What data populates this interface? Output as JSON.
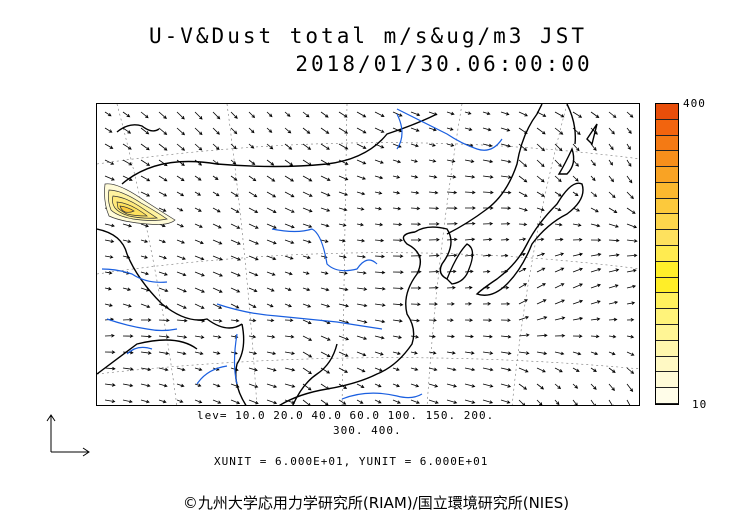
{
  "title_line1": "U-V&Dust total m/s&ug/m3 JST",
  "title_line2": "2018/01/30.06:00:00",
  "lev_line1": "lev= 10.0 20.0 40.0 60.0 100. 150. 200.",
  "lev_line2": "300. 400.",
  "unit_line": "XUNIT = 6.000E+01, YUNIT = 6.000E+01",
  "legend": {
    "max_label": "400",
    "min_label": "10",
    "colors": [
      "#e84e0a",
      "#f2640e",
      "#f47a14",
      "#f78f1b",
      "#f9a324",
      "#fbb82f",
      "#fcc93c",
      "#fdd64c",
      "#fee15e",
      "#ffeb50",
      "#ffef2a",
      "#ffee28",
      "#fff15e",
      "#fff37a",
      "#fff595",
      "#fff7ad",
      "#fff9c4",
      "#fffbd8",
      "#fffde9"
    ]
  },
  "colors": {
    "rivers": "#1a5fe0",
    "coast": "#000000",
    "vectors": "#000000"
  },
  "copyright": "©九州大学応用力学研究所(RIAM)/国立環境研究所(NIES)"
}
